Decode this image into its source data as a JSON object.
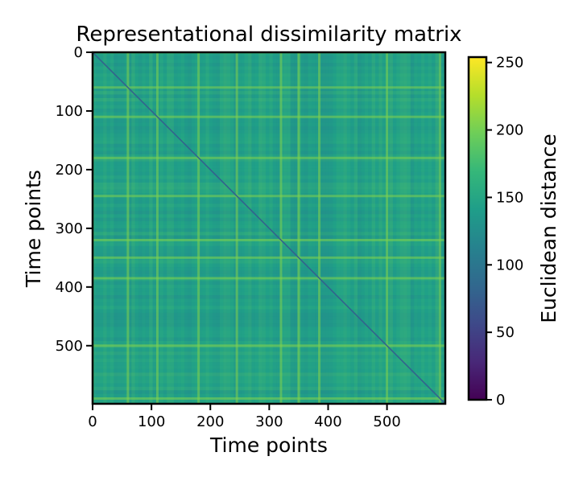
{
  "chart_data": {
    "type": "heatmap",
    "title": "Representational dissimilarity matrix",
    "xlabel": "Time points",
    "ylabel": "Time points",
    "matrix_size": 600,
    "xlim": [
      0,
      599
    ],
    "ylim": [
      599,
      0
    ],
    "x_ticks": [
      0,
      100,
      200,
      300,
      400,
      500
    ],
    "y_ticks": [
      0,
      100,
      200,
      300,
      400,
      500
    ],
    "diagonal_value": 0,
    "typical_offdiagonal_range": [
      110,
      190
    ],
    "bright_bands_at": [
      0,
      60,
      110,
      180,
      245,
      320,
      350,
      385,
      500,
      590
    ],
    "colorbar": {
      "label": "Euclidean distance",
      "min": 0,
      "max": 254,
      "ticks": [
        0,
        50,
        100,
        150,
        200,
        250
      ],
      "colormap": "viridis",
      "colormap_stops": [
        "#440154",
        "#482878",
        "#3e4989",
        "#31688e",
        "#26828e",
        "#1f9e89",
        "#35b779",
        "#6ece58",
        "#b5de2b",
        "#fde725"
      ]
    },
    "grid": false
  }
}
